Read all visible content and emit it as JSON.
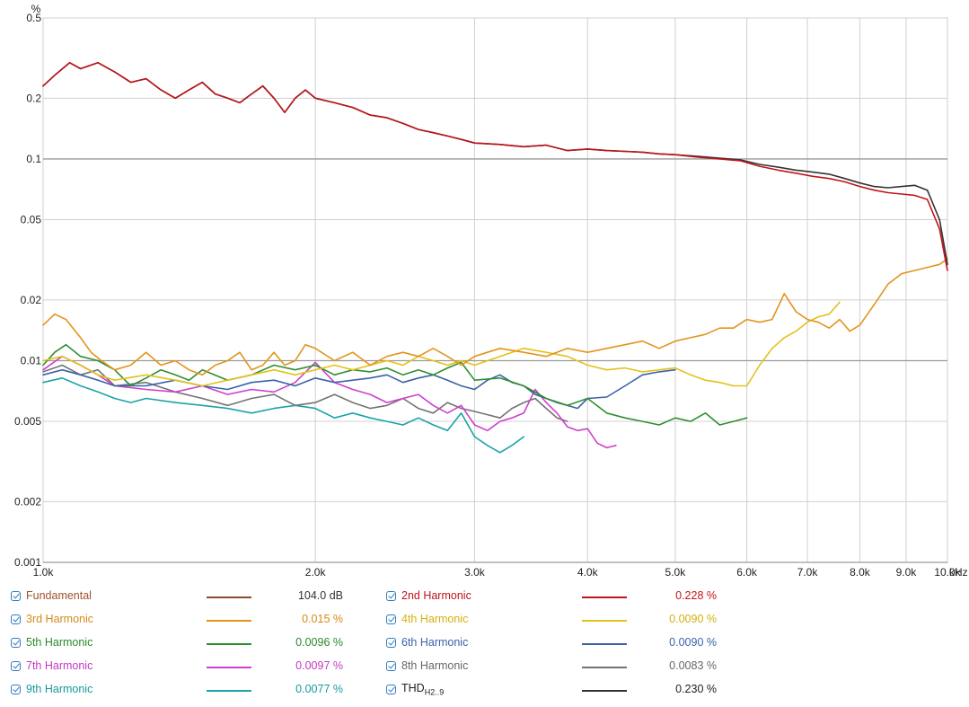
{
  "chart_data": {
    "type": "line",
    "y_unit_label": "%",
    "x_unit_label": "kHz",
    "x_scale": "log",
    "y_scale": "log",
    "xlim": [
      1000,
      10000
    ],
    "ylim": [
      0.001,
      0.5
    ],
    "grid": true,
    "x_ticks": [
      {
        "value": 1000,
        "label": "1.0k"
      },
      {
        "value": 2000,
        "label": "2.0k"
      },
      {
        "value": 3000,
        "label": "3.0k"
      },
      {
        "value": 4000,
        "label": "4.0k"
      },
      {
        "value": 5000,
        "label": "5.0k"
      },
      {
        "value": 6000,
        "label": "6.0k"
      },
      {
        "value": 7000,
        "label": "7.0k"
      },
      {
        "value": 8000,
        "label": "8.0k"
      },
      {
        "value": 9000,
        "label": "9.0k"
      },
      {
        "value": 10000,
        "label": "10.0k"
      }
    ],
    "y_ticks": [
      {
        "value": 0.001,
        "label": "0.001"
      },
      {
        "value": 0.002,
        "label": "0.002"
      },
      {
        "value": 0.005,
        "label": "0.005"
      },
      {
        "value": 0.01,
        "label": "0.01"
      },
      {
        "value": 0.02,
        "label": "0.02"
      },
      {
        "value": 0.05,
        "label": "0.05"
      },
      {
        "value": 0.1,
        "label": "0.1"
      },
      {
        "value": 0.2,
        "label": "0.2"
      },
      {
        "value": 0.5,
        "label": "0.5"
      }
    ],
    "series": [
      {
        "name": "2nd Harmonic",
        "color": "#c0141b",
        "x": [
          1000,
          1030,
          1070,
          1100,
          1150,
          1200,
          1250,
          1300,
          1350,
          1400,
          1450,
          1500,
          1550,
          1600,
          1650,
          1700,
          1750,
          1800,
          1850,
          1900,
          1950,
          2000,
          2100,
          2200,
          2300,
          2400,
          2500,
          2600,
          2700,
          2800,
          2900,
          3000,
          3200,
          3400,
          3600,
          3800,
          4000,
          4200,
          4400,
          4600,
          4800,
          5000,
          5300,
          5600,
          5900,
          6200,
          6500,
          6800,
          7100,
          7400,
          7700,
          8000,
          8300,
          8600,
          8900,
          9200,
          9500,
          9800,
          10000
        ],
        "y": [
          0.23,
          0.26,
          0.3,
          0.28,
          0.3,
          0.27,
          0.24,
          0.25,
          0.22,
          0.2,
          0.22,
          0.24,
          0.21,
          0.2,
          0.19,
          0.21,
          0.23,
          0.2,
          0.17,
          0.2,
          0.22,
          0.2,
          0.19,
          0.18,
          0.165,
          0.16,
          0.15,
          0.14,
          0.135,
          0.13,
          0.125,
          0.12,
          0.118,
          0.115,
          0.117,
          0.11,
          0.112,
          0.11,
          0.109,
          0.108,
          0.106,
          0.105,
          0.102,
          0.1,
          0.098,
          0.092,
          0.088,
          0.085,
          0.082,
          0.08,
          0.077,
          0.073,
          0.07,
          0.068,
          0.067,
          0.066,
          0.063,
          0.045,
          0.028
        ]
      },
      {
        "name": "THDH2..9",
        "color": "#333333",
        "x": [
          1000,
          1030,
          1070,
          1100,
          1150,
          1200,
          1250,
          1300,
          1350,
          1400,
          1450,
          1500,
          1550,
          1600,
          1650,
          1700,
          1750,
          1800,
          1850,
          1900,
          1950,
          2000,
          2100,
          2200,
          2300,
          2400,
          2500,
          2600,
          2700,
          2800,
          2900,
          3000,
          3200,
          3400,
          3600,
          3800,
          4000,
          4200,
          4400,
          4600,
          4800,
          5000,
          5300,
          5600,
          5900,
          6200,
          6500,
          6800,
          7100,
          7400,
          7700,
          8000,
          8300,
          8600,
          8900,
          9200,
          9500,
          9800,
          10000
        ],
        "y": [
          0.23,
          0.26,
          0.3,
          0.28,
          0.3,
          0.27,
          0.24,
          0.25,
          0.22,
          0.2,
          0.22,
          0.24,
          0.21,
          0.2,
          0.19,
          0.21,
          0.23,
          0.2,
          0.17,
          0.2,
          0.22,
          0.2,
          0.19,
          0.18,
          0.165,
          0.16,
          0.15,
          0.14,
          0.135,
          0.13,
          0.125,
          0.12,
          0.118,
          0.115,
          0.117,
          0.11,
          0.112,
          0.11,
          0.109,
          0.108,
          0.106,
          0.105,
          0.103,
          0.101,
          0.099,
          0.094,
          0.091,
          0.088,
          0.086,
          0.084,
          0.08,
          0.076,
          0.073,
          0.072,
          0.073,
          0.074,
          0.07,
          0.05,
          0.03
        ]
      },
      {
        "name": "3rd Harmonic",
        "color": "#e2941b",
        "x": [
          1000,
          1030,
          1060,
          1100,
          1130,
          1160,
          1200,
          1250,
          1300,
          1350,
          1400,
          1450,
          1500,
          1550,
          1600,
          1650,
          1700,
          1750,
          1800,
          1850,
          1900,
          1950,
          2000,
          2100,
          2200,
          2300,
          2400,
          2500,
          2600,
          2700,
          2800,
          2900,
          3000,
          3100,
          3200,
          3400,
          3600,
          3800,
          4000,
          4200,
          4400,
          4600,
          4800,
          5000,
          5200,
          5400,
          5600,
          5800,
          6000,
          6200,
          6400,
          6600,
          6800,
          7000,
          7200,
          7400,
          7600,
          7800,
          8000,
          8300,
          8600,
          8900,
          9200,
          9500,
          9800,
          10000
        ],
        "y": [
          0.015,
          0.017,
          0.016,
          0.013,
          0.011,
          0.01,
          0.009,
          0.0095,
          0.011,
          0.0095,
          0.01,
          0.009,
          0.0085,
          0.0095,
          0.01,
          0.011,
          0.009,
          0.0095,
          0.011,
          0.0095,
          0.01,
          0.012,
          0.0115,
          0.01,
          0.011,
          0.0095,
          0.0105,
          0.011,
          0.0105,
          0.0115,
          0.0105,
          0.0095,
          0.0105,
          0.011,
          0.0115,
          0.011,
          0.0105,
          0.0115,
          0.011,
          0.0115,
          0.012,
          0.0125,
          0.0115,
          0.0125,
          0.013,
          0.0135,
          0.0145,
          0.0145,
          0.016,
          0.0155,
          0.016,
          0.0215,
          0.0175,
          0.016,
          0.0155,
          0.0145,
          0.016,
          0.014,
          0.015,
          0.019,
          0.024,
          0.027,
          0.028,
          0.029,
          0.03,
          0.032
        ]
      },
      {
        "name": "4th Harmonic",
        "color": "#e3c21a",
        "x": [
          1000,
          1050,
          1100,
          1150,
          1200,
          1300,
          1400,
          1500,
          1600,
          1700,
          1800,
          1900,
          2000,
          2100,
          2200,
          2300,
          2400,
          2500,
          2600,
          2700,
          2800,
          2900,
          3000,
          3200,
          3400,
          3600,
          3800,
          4000,
          4200,
          4400,
          4600,
          4800,
          5000,
          5200,
          5400,
          5600,
          5800,
          6000,
          6200,
          6400,
          6600,
          6800,
          7000,
          7200,
          7400,
          7600
        ],
        "y": [
          0.01,
          0.0105,
          0.0095,
          0.0085,
          0.008,
          0.0085,
          0.008,
          0.0075,
          0.008,
          0.0085,
          0.009,
          0.0085,
          0.009,
          0.0095,
          0.009,
          0.0095,
          0.01,
          0.0095,
          0.0105,
          0.01,
          0.0095,
          0.01,
          0.0095,
          0.0105,
          0.0115,
          0.011,
          0.0105,
          0.0095,
          0.009,
          0.0092,
          0.0088,
          0.009,
          0.0092,
          0.0085,
          0.008,
          0.0078,
          0.0075,
          0.0075,
          0.0095,
          0.0115,
          0.013,
          0.014,
          0.0155,
          0.0165,
          0.017,
          0.0195
        ]
      },
      {
        "name": "5th Harmonic",
        "color": "#2f8f30",
        "x": [
          1000,
          1030,
          1060,
          1100,
          1150,
          1200,
          1250,
          1300,
          1350,
          1400,
          1450,
          1500,
          1600,
          1700,
          1800,
          1900,
          2000,
          2100,
          2200,
          2300,
          2400,
          2500,
          2600,
          2700,
          2800,
          2900,
          3000,
          3200,
          3400,
          3600,
          3800,
          4000,
          4200,
          4400,
          4600,
          4800,
          5000,
          5200,
          5400,
          5600,
          5800,
          6000
        ],
        "y": [
          0.0095,
          0.011,
          0.012,
          0.0105,
          0.01,
          0.009,
          0.0075,
          0.0082,
          0.009,
          0.0085,
          0.008,
          0.009,
          0.008,
          0.0085,
          0.0095,
          0.009,
          0.0095,
          0.0085,
          0.009,
          0.0088,
          0.0092,
          0.0085,
          0.009,
          0.0085,
          0.0092,
          0.0098,
          0.008,
          0.0082,
          0.0075,
          0.0065,
          0.006,
          0.0065,
          0.0055,
          0.0052,
          0.005,
          0.0048,
          0.0052,
          0.005,
          0.0055,
          0.0048,
          0.005,
          0.0052
        ]
      },
      {
        "name": "6th Harmonic",
        "color": "#3a62a8",
        "x": [
          1000,
          1050,
          1100,
          1150,
          1200,
          1300,
          1400,
          1500,
          1600,
          1700,
          1800,
          1900,
          2000,
          2100,
          2200,
          2300,
          2400,
          2500,
          2600,
          2700,
          2800,
          2900,
          3000,
          3100,
          3200,
          3300,
          3400,
          3500,
          3600,
          3700,
          3800,
          3900,
          4000,
          4200,
          4400,
          4600,
          4800,
          5000
        ],
        "y": [
          0.0085,
          0.009,
          0.0085,
          0.008,
          0.0075,
          0.0075,
          0.008,
          0.0075,
          0.0072,
          0.0078,
          0.008,
          0.0075,
          0.0082,
          0.0078,
          0.008,
          0.0082,
          0.0085,
          0.0078,
          0.0082,
          0.0085,
          0.008,
          0.0075,
          0.0072,
          0.008,
          0.0085,
          0.0078,
          0.0075,
          0.0068,
          0.0065,
          0.0062,
          0.006,
          0.0058,
          0.0065,
          0.0066,
          0.0075,
          0.0085,
          0.0088,
          0.009
        ]
      },
      {
        "name": "7th Harmonic",
        "color": "#cf3fcf",
        "x": [
          1000,
          1050,
          1100,
          1150,
          1200,
          1300,
          1400,
          1500,
          1600,
          1700,
          1800,
          1900,
          2000,
          2100,
          2200,
          2300,
          2400,
          2500,
          2600,
          2700,
          2800,
          2900,
          3000,
          3100,
          3200,
          3300,
          3400,
          3500,
          3600,
          3700,
          3800,
          3900,
          4000,
          4100,
          4200,
          4300
        ],
        "y": [
          0.009,
          0.0105,
          0.0095,
          0.0085,
          0.0075,
          0.0072,
          0.007,
          0.0075,
          0.0068,
          0.0072,
          0.007,
          0.0078,
          0.0098,
          0.0078,
          0.0072,
          0.0068,
          0.0062,
          0.0065,
          0.0068,
          0.006,
          0.0055,
          0.006,
          0.0048,
          0.0045,
          0.005,
          0.0052,
          0.0055,
          0.0072,
          0.0062,
          0.0055,
          0.0047,
          0.0045,
          0.0046,
          0.0039,
          0.0037,
          0.0038
        ]
      },
      {
        "name": "8th Harmonic",
        "color": "#737373",
        "x": [
          1000,
          1050,
          1100,
          1150,
          1200,
          1300,
          1400,
          1500,
          1600,
          1700,
          1800,
          1900,
          2000,
          2100,
          2200,
          2300,
          2400,
          2500,
          2600,
          2700,
          2800,
          2900,
          3000,
          3100,
          3200,
          3300,
          3400,
          3500,
          3600,
          3700,
          3800
        ],
        "y": [
          0.0088,
          0.0095,
          0.0085,
          0.009,
          0.0075,
          0.0078,
          0.007,
          0.0065,
          0.006,
          0.0065,
          0.0068,
          0.006,
          0.0062,
          0.0068,
          0.0062,
          0.0058,
          0.006,
          0.0065,
          0.0058,
          0.0055,
          0.0062,
          0.0058,
          0.0056,
          0.0054,
          0.0052,
          0.0058,
          0.0062,
          0.0065,
          0.0058,
          0.0052,
          0.005
        ]
      },
      {
        "name": "9th Harmonic",
        "color": "#1aa3a6",
        "x": [
          1000,
          1050,
          1100,
          1150,
          1200,
          1250,
          1300,
          1400,
          1500,
          1600,
          1700,
          1800,
          1900,
          2000,
          2100,
          2200,
          2300,
          2400,
          2500,
          2600,
          2700,
          2800,
          2900,
          3000,
          3100,
          3200,
          3300,
          3400
        ],
        "y": [
          0.0078,
          0.0082,
          0.0075,
          0.007,
          0.0065,
          0.0062,
          0.0065,
          0.0062,
          0.006,
          0.0058,
          0.0055,
          0.0058,
          0.006,
          0.0058,
          0.0052,
          0.0055,
          0.0052,
          0.005,
          0.0048,
          0.0052,
          0.0048,
          0.0045,
          0.0055,
          0.0042,
          0.0038,
          0.0035,
          0.0038,
          0.0042
        ]
      }
    ]
  },
  "legend": [
    {
      "name": "fundamental",
      "label": "Fundamental",
      "value": "104.0 dB",
      "color": "#8c4a2c",
      "text_color": "#a0522d"
    },
    {
      "name": "2nd-harmonic",
      "label": "2nd Harmonic",
      "value": "0.228 %",
      "color": "#c0141b",
      "text_color": "#c0141b"
    },
    {
      "name": "3rd-harmonic",
      "label": "3rd Harmonic",
      "value": "0.015 %",
      "color": "#e2941b",
      "text_color": "#d68a14"
    },
    {
      "name": "4th-harmonic",
      "label": "4th Harmonic",
      "value": "0.0090 %",
      "color": "#e3c21a",
      "text_color": "#d4b010"
    },
    {
      "name": "5th-harmonic",
      "label": "5th Harmonic",
      "value": "0.0096 %",
      "color": "#2f8f30",
      "text_color": "#2a8a2a"
    },
    {
      "name": "6th-harmonic",
      "label": "6th Harmonic",
      "value": "0.0090 %",
      "color": "#3a62a8",
      "text_color": "#3a62a8"
    },
    {
      "name": "7th-harmonic",
      "label": "7th Harmonic",
      "value": "0.0097 %",
      "color": "#cf3fcf",
      "text_color": "#c437c4"
    },
    {
      "name": "8th-harmonic",
      "label": "8th Harmonic",
      "value": "0.0083 %",
      "color": "#737373",
      "text_color": "#666666"
    },
    {
      "name": "9th-harmonic",
      "label": "9th Harmonic",
      "value": "0.0077 %",
      "color": "#1aa3a6",
      "text_color": "#169a9d"
    },
    {
      "name": "thd",
      "label": "THD",
      "label_sub": "H2..9",
      "value": "0.230 %",
      "color": "#333333",
      "text_color": "#222222"
    }
  ]
}
